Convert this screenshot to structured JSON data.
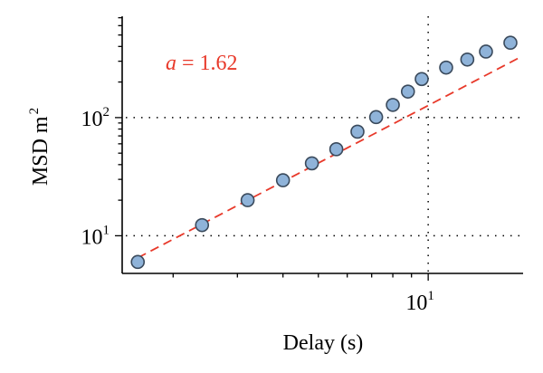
{
  "chart_data": {
    "type": "scatter",
    "title": "",
    "xlabel": "Delay (s)",
    "ylabel": "MSD m",
    "ylabel_sup": "2",
    "x_scale": "log",
    "y_scale": "log",
    "xlim": [
      1.45,
      18.2
    ],
    "ylim": [
      4.8,
      720
    ],
    "x_ticks": [
      {
        "base": "10",
        "exp": "1",
        "value": 10
      }
    ],
    "y_ticks": [
      {
        "base": "10",
        "exp": "1",
        "value": 10
      },
      {
        "base": "10",
        "exp": "2",
        "value": 100
      }
    ],
    "x_minor_ticks": [
      2,
      3,
      4,
      5,
      6,
      7,
      8,
      9
    ],
    "y_minor_ticks": [
      20,
      30,
      40,
      50,
      60,
      70,
      80,
      90,
      200,
      300,
      400,
      500,
      600,
      700
    ],
    "grid": {
      "x_major": true,
      "y_major": true
    },
    "series": [
      {
        "x": [
          1.6,
          2.4,
          3.2,
          4.0,
          4.8,
          5.6,
          6.4,
          7.2,
          8.0,
          8.8,
          9.6,
          11.2,
          12.8,
          14.4,
          16.8
        ],
        "y": [
          6.0,
          12.3,
          20.0,
          29.5,
          41.0,
          54.0,
          76.0,
          101.0,
          128.0,
          166.0,
          212.0,
          265.0,
          310.0,
          362.0,
          430.0
        ]
      }
    ],
    "fit": {
      "label_var": "a",
      "label_text": " = 1.62",
      "slope": 1.62,
      "anchor": [
        3.2,
        20.0
      ],
      "x_range": [
        1.6,
        17.8
      ]
    },
    "colors": {
      "marker_fill": "#8fb3d9",
      "marker_edge": "#3a4a5c",
      "fit_line": "#e8392a",
      "annotation": "#e8392a"
    }
  }
}
